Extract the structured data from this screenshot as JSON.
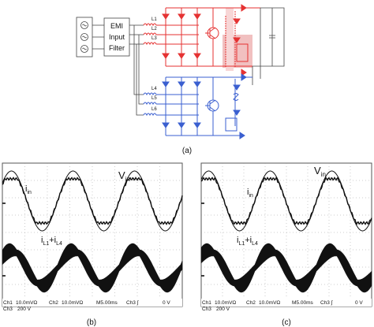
{
  "figure": {
    "panel_labels": {
      "a": "(a)",
      "b": "(b)",
      "c": "(c)"
    }
  },
  "circuit": {
    "filter_label_lines": [
      "EMI",
      "Input",
      "Filter"
    ],
    "inductor_labels": [
      "L1",
      "L2",
      "L3",
      "L4",
      "L5",
      "L6"
    ],
    "colors": {
      "upper_converter": "#e53232",
      "lower_converter": "#3a5fd0",
      "wiring": "#444444",
      "highlight": "#f1c0c0"
    }
  },
  "scope_b": {
    "labels": {
      "vin": "V",
      "vin_sub": "in",
      "iin": "i",
      "iin_sub": "in",
      "sum_i": "i",
      "sum_sub1": "L1",
      "sum_plus": "+i",
      "sum_sub2": "L4"
    },
    "status_row1": [
      "Ch1",
      "10.0mVΩ",
      "Ch2",
      "10.0mVΩ",
      "M5.00ms",
      "Ch3 ∫",
      "0 V"
    ],
    "status_row2": [
      "Ch3",
      "200 V"
    ]
  },
  "scope_c": {
    "labels": {
      "vin": "V",
      "vin_sub": "in",
      "iin": "i",
      "iin_sub": "in",
      "sum_i": "i",
      "sum_sub1": "L1",
      "sum_plus": "+i",
      "sum_sub2": "L4"
    },
    "status_row1": [
      "Ch1",
      "10.0mVΩ",
      "Ch2",
      "10.0mVΩ",
      "M5.00ms",
      "Ch3 ∫",
      "0 V"
    ],
    "status_row2": [
      "Ch3",
      "200 V"
    ]
  }
}
